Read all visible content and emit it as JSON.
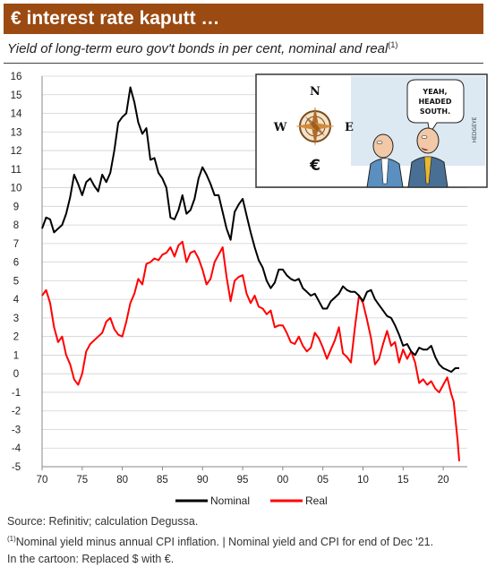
{
  "header": {
    "title": "€ interest rate kaputt …",
    "subtitle": "Yield of long-term euro gov't bonds in per cent, nominal and real",
    "subtitle_sup": "(1)"
  },
  "cartoon": {
    "compass_n": "N",
    "compass_e": "E",
    "compass_w": "W",
    "euro_sign": "€",
    "speech_line1": "YEAH,",
    "speech_line2": "HEADED",
    "speech_line3": "SOUTH.",
    "signature": "HEDGEYE"
  },
  "notes": {
    "source": "Source: Refinitiv; calculation Degussa.",
    "footnote_mark": "(1)",
    "footnote": "Nominal yield minus annual CPI inflation. | Nominal yield and CPI for end of Dec '21.",
    "cartoon_note": "In the cartoon: Replaced $ with €."
  },
  "colors": {
    "title_bg": "#9b4a12",
    "nominal": "#000000",
    "real": "#ff0000",
    "grid": "#d0d0d0"
  },
  "chart_data": {
    "type": "line",
    "ylim": [
      -5,
      16
    ],
    "yticks": [
      "16",
      "15",
      "14",
      "13",
      "12",
      "11",
      "10",
      "9",
      "8",
      "7",
      "6",
      "5",
      "4",
      "3",
      "2",
      "1",
      "0",
      "-1",
      "-2",
      "-3",
      "-4",
      "-5"
    ],
    "xlim": [
      1970,
      2023
    ],
    "xticks": [
      "70",
      "75",
      "80",
      "85",
      "90",
      "95",
      "00",
      "05",
      "10",
      "15",
      "20"
    ],
    "grid": "horizontal",
    "legend_position": "bottom",
    "series": [
      {
        "name": "Nominal",
        "color": "#000000",
        "x": [
          1970,
          1970.5,
          1971,
          1971.5,
          1972,
          1972.5,
          1973,
          1973.5,
          1974,
          1974.5,
          1975,
          1975.5,
          1976,
          1976.5,
          1977,
          1977.5,
          1978,
          1978.5,
          1979,
          1979.5,
          1980,
          1980.5,
          1981,
          1981.5,
          1982,
          1982.5,
          1983,
          1983.5,
          1984,
          1984.5,
          1985,
          1985.5,
          1986,
          1986.5,
          1987,
          1987.5,
          1988,
          1988.5,
          1989,
          1989.5,
          1990,
          1990.5,
          1991,
          1991.5,
          1992,
          1992.5,
          1993,
          1993.5,
          1994,
          1994.5,
          1995,
          1995.5,
          1996,
          1996.5,
          1997,
          1997.5,
          1998,
          1998.5,
          1999,
          1999.5,
          2000,
          2000.5,
          2001,
          2001.5,
          2002,
          2002.5,
          2003,
          2003.5,
          2004,
          2004.5,
          2005,
          2005.5,
          2006,
          2006.5,
          2007,
          2007.5,
          2008,
          2008.5,
          2009,
          2009.5,
          2010,
          2010.5,
          2011,
          2011.5,
          2012,
          2012.5,
          2013,
          2013.5,
          2014,
          2014.5,
          2015,
          2015.5,
          2016,
          2016.5,
          2017,
          2017.5,
          2018,
          2018.5,
          2019,
          2019.5,
          2020,
          2020.5,
          2021,
          2021.5,
          2022
        ],
        "values": [
          7.8,
          8.4,
          8.3,
          7.6,
          7.8,
          8.0,
          8.6,
          9.5,
          10.7,
          10.2,
          9.6,
          10.3,
          10.5,
          10.1,
          9.8,
          10.7,
          10.3,
          10.8,
          12.0,
          13.5,
          13.8,
          14.0,
          15.4,
          14.6,
          13.5,
          12.9,
          13.2,
          11.5,
          11.6,
          10.8,
          10.5,
          10.0,
          8.4,
          8.3,
          8.8,
          9.6,
          8.6,
          8.8,
          9.4,
          10.5,
          11.1,
          10.7,
          10.2,
          9.6,
          9.6,
          8.7,
          7.8,
          7.2,
          8.7,
          9.1,
          9.4,
          8.5,
          7.6,
          6.8,
          6.1,
          5.7,
          5.0,
          4.6,
          4.9,
          5.6,
          5.6,
          5.3,
          5.1,
          5.0,
          5.1,
          4.6,
          4.4,
          4.2,
          4.3,
          3.9,
          3.5,
          3.5,
          3.9,
          4.1,
          4.3,
          4.7,
          4.5,
          4.4,
          4.4,
          4.2,
          3.9,
          4.4,
          4.5,
          4.0,
          3.7,
          3.4,
          3.1,
          3.0,
          2.6,
          2.1,
          1.5,
          1.6,
          1.2,
          1.0,
          1.4,
          1.3,
          1.3,
          1.5,
          0.9,
          0.5,
          0.3,
          0.2,
          0.1,
          0.3,
          0.3
        ]
      },
      {
        "name": "Real",
        "color": "#ff0000",
        "x": [
          1970,
          1970.5,
          1971,
          1971.5,
          1972,
          1972.5,
          1973,
          1973.5,
          1974,
          1974.5,
          1975,
          1975.5,
          1976,
          1976.5,
          1977,
          1977.5,
          1978,
          1978.5,
          1979,
          1979.5,
          1980,
          1980.5,
          1981,
          1981.5,
          1982,
          1982.5,
          1983,
          1983.5,
          1984,
          1984.5,
          1985,
          1985.5,
          1986,
          1986.5,
          1987,
          1987.5,
          1988,
          1988.5,
          1989,
          1989.5,
          1990,
          1990.5,
          1991,
          1991.5,
          1992,
          1992.5,
          1993,
          1993.5,
          1994,
          1994.5,
          1995,
          1995.5,
          1996,
          1996.5,
          1997,
          1997.5,
          1998,
          1998.5,
          1999,
          1999.5,
          2000,
          2000.5,
          2001,
          2001.5,
          2002,
          2002.5,
          2003,
          2003.5,
          2004,
          2004.5,
          2005,
          2005.5,
          2006,
          2006.5,
          2007,
          2007.5,
          2008,
          2008.5,
          2009,
          2009.5,
          2010,
          2010.5,
          2011,
          2011.5,
          2012,
          2012.5,
          2013,
          2013.5,
          2014,
          2014.5,
          2015,
          2015.5,
          2016,
          2016.5,
          2017,
          2017.5,
          2018,
          2018.5,
          2019,
          2019.5,
          2020,
          2020.5,
          2021,
          2021.3,
          2021.6,
          2021.8,
          2022
        ],
        "values": [
          4.2,
          4.5,
          3.8,
          2.5,
          1.7,
          2.0,
          1.0,
          0.5,
          -0.3,
          -0.6,
          0.0,
          1.2,
          1.6,
          1.8,
          2.0,
          2.2,
          2.8,
          3.0,
          2.4,
          2.1,
          2.0,
          2.8,
          3.8,
          4.3,
          5.1,
          4.8,
          5.9,
          6.0,
          6.2,
          6.1,
          6.4,
          6.5,
          6.8,
          6.3,
          6.9,
          7.1,
          6.0,
          6.5,
          6.6,
          6.2,
          5.6,
          4.8,
          5.1,
          6.0,
          6.4,
          6.8,
          5.2,
          3.9,
          5.0,
          5.2,
          5.3,
          4.3,
          3.8,
          4.2,
          3.6,
          3.5,
          3.2,
          3.4,
          2.5,
          2.6,
          2.6,
          2.2,
          1.7,
          1.6,
          2.0,
          1.5,
          1.2,
          1.4,
          2.2,
          1.9,
          1.4,
          0.8,
          1.3,
          1.8,
          2.5,
          1.1,
          0.9,
          0.6,
          2.5,
          4.2,
          3.8,
          2.9,
          1.9,
          0.5,
          0.8,
          1.6,
          2.3,
          1.5,
          1.7,
          0.6,
          1.3,
          0.8,
          1.2,
          0.6,
          -0.5,
          -0.3,
          -0.6,
          -0.4,
          -0.8,
          -1.0,
          -0.6,
          -0.2,
          -1.1,
          -1.5,
          -2.8,
          -3.6,
          -4.7
        ]
      }
    ]
  }
}
